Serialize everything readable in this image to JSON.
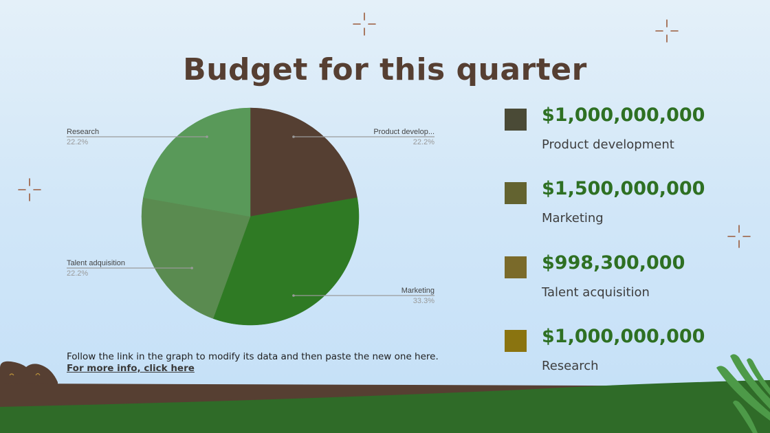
{
  "slide": {
    "title": "Budget for this quarter",
    "note": "Follow the link in the graph to modify its data and then paste the new one here.",
    "link": "For more info, click here"
  },
  "chart_data": {
    "type": "pie",
    "slices": [
      {
        "label": "Product develop...",
        "percent_label": "22.2%",
        "value": 22.2,
        "color": "#553f32"
      },
      {
        "label": "Marketing",
        "percent_label": "33.3%",
        "value": 33.3,
        "color": "#2f7a24"
      },
      {
        "label": "Talent adquisition",
        "percent_label": "22.2%",
        "value": 22.2,
        "color": "#5a8b50"
      },
      {
        "label": "Research",
        "percent_label": "22.2%",
        "value": 22.2,
        "color": "#599959"
      }
    ]
  },
  "legend": [
    {
      "value": "$1,000,000,000",
      "label": "Product development",
      "color": "#4a4a36"
    },
    {
      "value": "$1,500,000,000",
      "label": "Marketing",
      "color": "#636330"
    },
    {
      "value": "$998,300,000",
      "label": "Talent acquisition",
      "color": "#7a6a2a"
    },
    {
      "value": "$1,000,000,000",
      "label": "Research",
      "color": "#8a7410"
    }
  ],
  "colors": {
    "title": "#563f32",
    "value": "#2e7023",
    "sparkle": "#9a5a3a",
    "ground_brown": "#563f32",
    "ground_green": "#2f6b28",
    "leaf": "#4d9a48"
  }
}
